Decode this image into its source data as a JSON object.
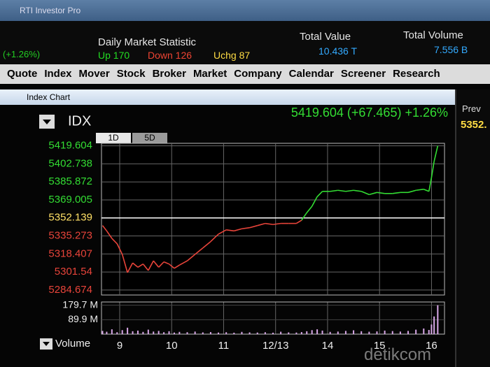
{
  "window_title": "RTI Investor Pro",
  "market": {
    "heading": "Daily Market Statistic",
    "change_text": "(+1.26%)",
    "up": "Up 170",
    "down": "Down 126",
    "unchanged": "Uchg 87",
    "total_value_label": "Total Value",
    "total_value": "10.436 T",
    "total_volume_label": "Total Volume",
    "total_volume": "7.556 B"
  },
  "menu": [
    "Quote",
    "Index",
    "Mover",
    "Stock",
    "Broker",
    "Market",
    "Company",
    "Calendar",
    "Screener",
    "Research"
  ],
  "panel_title": "Index Chart",
  "side": {
    "prev_label": "Prev",
    "prev_value": "5352."
  },
  "watermark": "detikcom",
  "chart_data": {
    "type": "line",
    "symbol": "IDX",
    "headline": "5419.604 (+67.465) +1.26%",
    "tabs": [
      "1D",
      "5D"
    ],
    "up_color": "#33dd33",
    "down_color": "#e8443a",
    "prev_color": "#ffe066",
    "x": [
      -0.33,
      -0.25,
      -0.15,
      -0.05,
      0.05,
      0.15,
      0.25,
      0.35,
      0.45,
      0.55,
      0.65,
      0.75,
      0.85,
      0.95,
      1.05,
      1.15,
      1.3,
      1.45,
      1.6,
      1.75,
      1.9,
      2.05,
      2.2,
      2.35,
      2.5,
      2.65,
      2.8,
      2.95,
      3.1,
      3.25,
      3.4,
      3.5,
      3.6,
      3.7,
      3.8,
      3.9,
      4.05,
      4.2,
      4.35,
      4.5,
      4.65,
      4.8,
      4.95,
      5.1,
      5.25,
      5.4,
      5.55,
      5.7,
      5.85,
      5.95,
      6.0,
      6.05,
      6.12
    ],
    "values": [
      5345,
      5340,
      5333,
      5328,
      5318,
      5301,
      5310,
      5306,
      5309,
      5303,
      5312,
      5306,
      5311,
      5309,
      5305,
      5308,
      5312,
      5318,
      5324,
      5330,
      5337,
      5341,
      5340,
      5342,
      5343,
      5345,
      5347,
      5346,
      5347,
      5347,
      5347,
      5350,
      5357,
      5363,
      5372,
      5377,
      5377,
      5378,
      5377,
      5378,
      5377,
      5374,
      5376,
      5375,
      5375,
      5376,
      5376,
      5378,
      5379,
      5377,
      5390,
      5405,
      5419.604
    ],
    "prev": 5352.139,
    "xlim": [
      -0.35,
      6.25
    ],
    "xticks": [
      {
        "value": 0,
        "label": "9"
      },
      {
        "value": 1,
        "label": "10"
      },
      {
        "value": 2,
        "label": "11"
      },
      {
        "value": 3,
        "label": "12/13"
      },
      {
        "value": 4,
        "label": "14"
      },
      {
        "value": 5,
        "label": "15"
      },
      {
        "value": 6,
        "label": "16"
      }
    ],
    "ylim": [
      5280,
      5422
    ],
    "yticks": [
      5419.604,
      5402.738,
      5385.872,
      5369.005,
      5352.139,
      5335.273,
      5318.407,
      5301.54,
      5284.674
    ],
    "volume": {
      "label": "Volume",
      "color": "#d9a8e8",
      "ylim": [
        0,
        200
      ],
      "yticks": [
        {
          "value": 89.9,
          "label": "89.9 M"
        },
        {
          "value": 179.7,
          "label": "179.7 M"
        }
      ],
      "values": [
        20,
        15,
        30,
        12,
        25,
        40,
        18,
        22,
        14,
        28,
        16,
        20,
        12,
        18,
        10,
        14,
        12,
        16,
        11,
        13,
        10,
        12,
        9,
        14,
        11,
        10,
        12,
        9,
        15,
        11,
        10,
        13,
        18,
        25,
        30,
        22,
        14,
        16,
        20,
        24,
        18,
        15,
        17,
        22,
        19,
        16,
        20,
        28,
        35,
        26,
        60,
        110,
        179.7
      ]
    }
  }
}
